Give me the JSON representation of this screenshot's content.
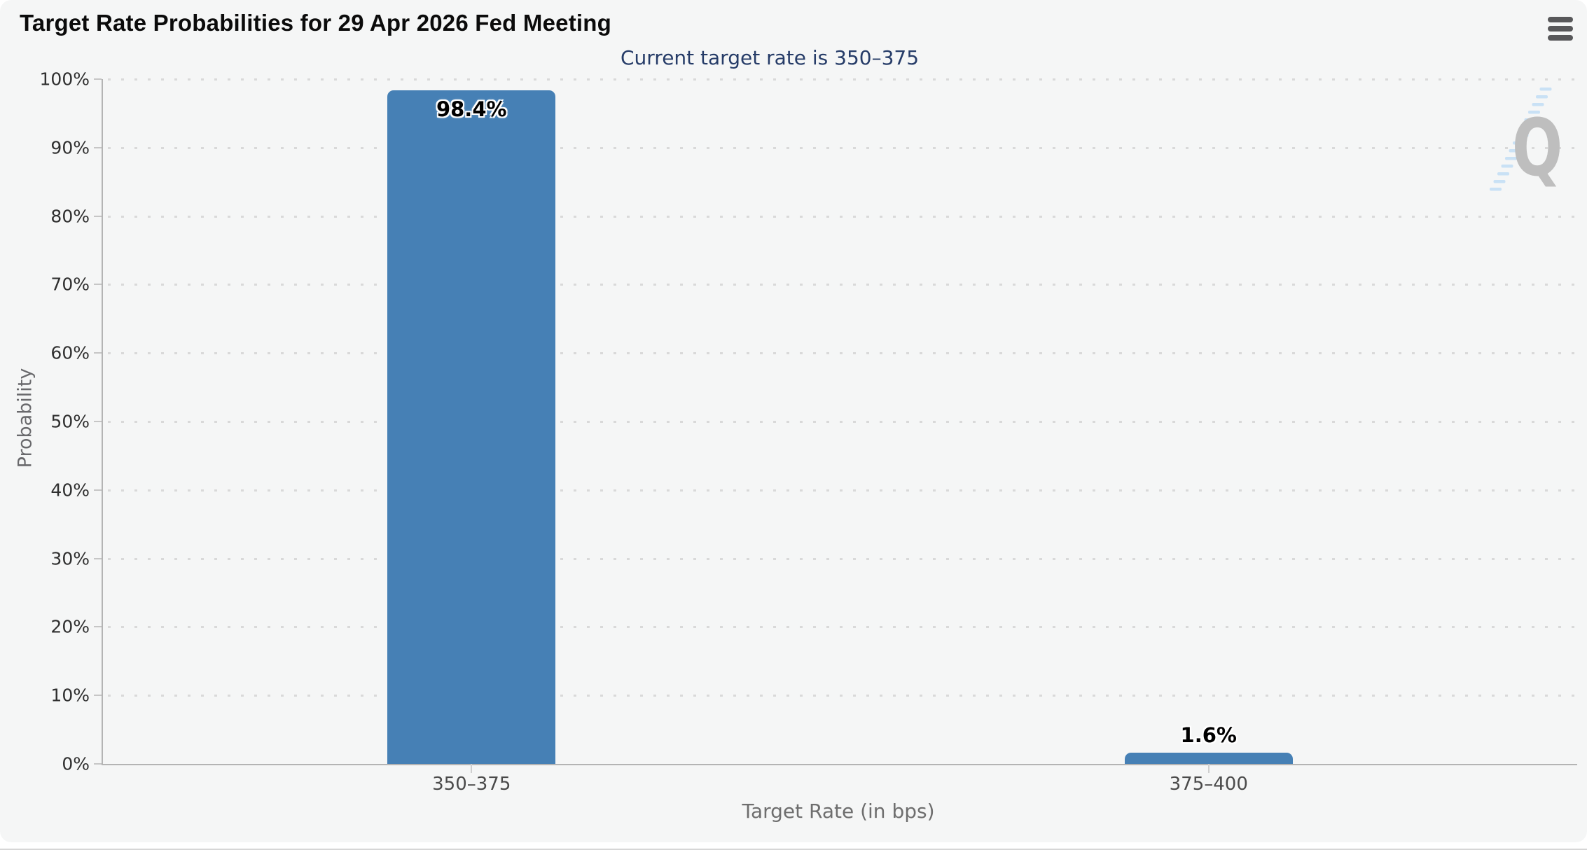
{
  "header": {
    "title": "Target Rate Probabilities for 29 Apr 2026 Fed Meeting",
    "menu_icon": "hamburger-icon"
  },
  "chart_data": {
    "type": "bar",
    "title": "Target Rate Probabilities for 29 Apr 2026 Fed Meeting",
    "subtitle": "Current target rate is 350–375",
    "categories": [
      "350–375",
      "375–400"
    ],
    "values": [
      98.4,
      1.6
    ],
    "value_labels": [
      "98.4%",
      "1.6%"
    ],
    "xlabel": "Target Rate (in bps)",
    "ylabel": "Probability",
    "ylim": [
      0,
      100
    ],
    "y_tick_labels": [
      "0%",
      "10%",
      "20%",
      "30%",
      "40%",
      "50%",
      "60%",
      "70%",
      "80%",
      "90%",
      "100%"
    ],
    "grid": "dotted-horizontal",
    "legend_position": "none",
    "bar_color": "#4680b5"
  },
  "watermark": {
    "letter": "Q",
    "letter_color": "#bebebe",
    "stripe_color": "#c9e1f5"
  },
  "colors": {
    "card_background": "#f5f6f6",
    "axis": "#b4b4b4",
    "gridline_dot": "#d9d9d9",
    "subtitle_text": "#263c68",
    "bar": "#4680b5"
  }
}
